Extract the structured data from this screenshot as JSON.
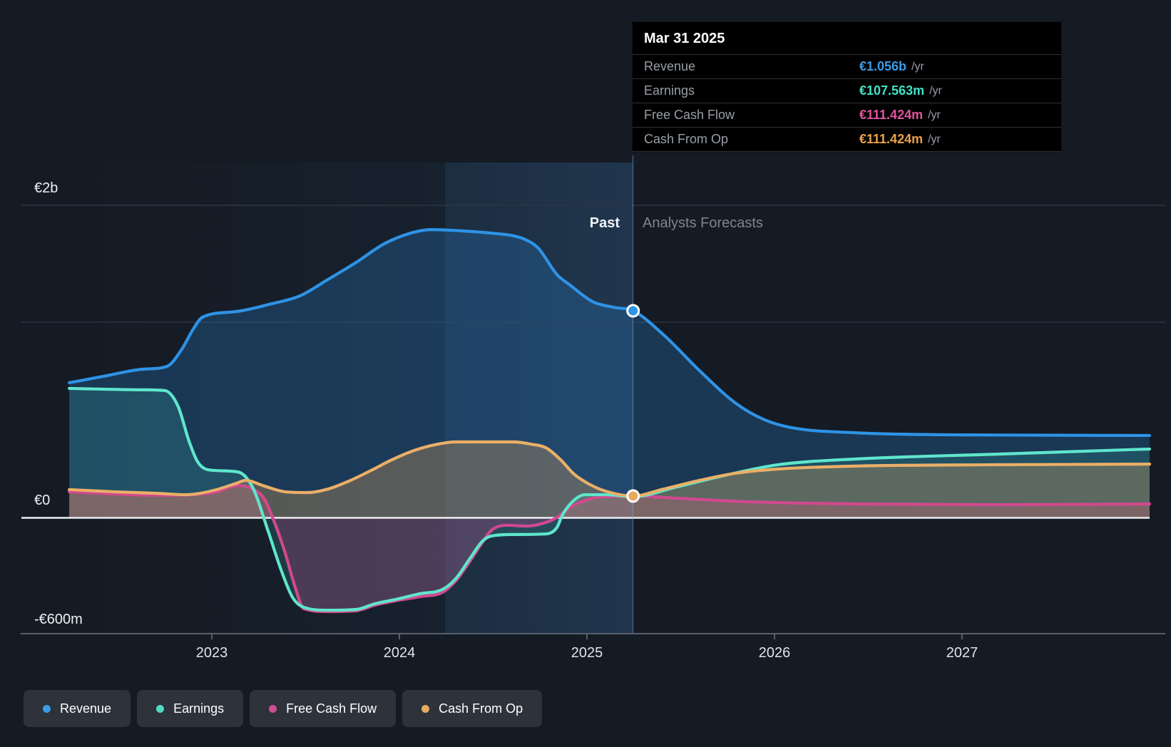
{
  "tooltip": {
    "title": "Mar 31 2025",
    "rows": [
      {
        "label": "Revenue",
        "value": "€1.056b",
        "suffix": "/yr",
        "color": "#3b9ce8"
      },
      {
        "label": "Earnings",
        "value": "€107.563m",
        "suffix": "/yr",
        "color": "#40e2c7"
      },
      {
        "label": "Free Cash Flow",
        "value": "€111.424m",
        "suffix": "/yr",
        "color": "#e2549f"
      },
      {
        "label": "Cash From Op",
        "value": "€111.424m",
        "suffix": "/yr",
        "color": "#eba14b"
      }
    ]
  },
  "annotations": {
    "past": "Past",
    "forecast": "Analysts Forecasts"
  },
  "y_axis": {
    "labels": [
      {
        "text": "€2b",
        "value_m": 2000
      },
      {
        "text": "€0",
        "value_m": 0
      },
      {
        "text": "-€600m",
        "value_m": -600
      }
    ]
  },
  "x_axis": {
    "ticks": [
      {
        "label": "2023",
        "year": 2023
      },
      {
        "label": "2024",
        "year": 2024
      },
      {
        "label": "2025",
        "year": 2025
      },
      {
        "label": "2026",
        "year": 2026
      },
      {
        "label": "2027",
        "year": 2027
      }
    ]
  },
  "legend": [
    {
      "label": "Revenue",
      "color": "#3b9de8"
    },
    {
      "label": "Earnings",
      "color": "#4edbc4"
    },
    {
      "label": "Free Cash Flow",
      "color": "#ce5092"
    },
    {
      "label": "Cash From Op",
      "color": "#e5ab61"
    }
  ],
  "chart_data": {
    "type": "area",
    "title": "Past and forecast financials",
    "x_unit": "year",
    "y_unit": "EUR millions",
    "x_range": [
      2022.24,
      2028.0
    ],
    "ylim_m": [
      -600,
      2000
    ],
    "divider_x": 2025.246,
    "divider_date": "Mar 31 2025",
    "grid": true,
    "legend_position": "bottom",
    "series": [
      {
        "name": "Revenue",
        "color": "#2e93e6",
        "fill": "rgba(37,110,175,0.34)",
        "points": [
          [
            2022.24,
            689
          ],
          [
            2022.44,
            725
          ],
          [
            2022.63,
            758
          ],
          [
            2022.76,
            772
          ],
          [
            2022.84,
            860
          ],
          [
            2022.9,
            961
          ],
          [
            2022.95,
            1023
          ],
          [
            2023.13,
            1052
          ],
          [
            2023.32,
            1092
          ],
          [
            2023.47,
            1132
          ],
          [
            2023.62,
            1216
          ],
          [
            2023.77,
            1303
          ],
          [
            2023.92,
            1398
          ],
          [
            2024.06,
            1452
          ],
          [
            2024.17,
            1470
          ],
          [
            2024.34,
            1463
          ],
          [
            2024.49,
            1452
          ],
          [
            2024.61,
            1438
          ],
          [
            2024.67,
            1420
          ],
          [
            2024.74,
            1376
          ],
          [
            2024.84,
            1241
          ],
          [
            2024.91,
            1187
          ],
          [
            2025.03,
            1103
          ],
          [
            2025.14,
            1074
          ],
          [
            2025.246,
            1056
          ],
          [
            2025.41,
            932
          ],
          [
            2025.6,
            751
          ],
          [
            2025.79,
            587
          ],
          [
            2025.94,
            503
          ],
          [
            2026.09,
            460
          ],
          [
            2026.43,
            434
          ],
          [
            2027.0,
            423
          ],
          [
            2028.0,
            420
          ]
        ]
      },
      {
        "name": "Earnings",
        "color": "#5fe6cd",
        "fill": "rgba(70,210,190,0.16)",
        "points": [
          [
            2022.24,
            660
          ],
          [
            2022.63,
            653
          ],
          [
            2022.75,
            649
          ],
          [
            2022.82,
            569
          ],
          [
            2022.88,
            387
          ],
          [
            2022.93,
            278
          ],
          [
            2023.01,
            242
          ],
          [
            2023.14,
            234
          ],
          [
            2023.22,
            151
          ],
          [
            2023.3,
            -67
          ],
          [
            2023.37,
            -267
          ],
          [
            2023.43,
            -405
          ],
          [
            2023.49,
            -456
          ],
          [
            2023.62,
            -471
          ],
          [
            2023.77,
            -467
          ],
          [
            2023.87,
            -438
          ],
          [
            2023.98,
            -416
          ],
          [
            2024.11,
            -387
          ],
          [
            2024.23,
            -365
          ],
          [
            2024.3,
            -311
          ],
          [
            2024.38,
            -202
          ],
          [
            2024.44,
            -122
          ],
          [
            2024.49,
            -93
          ],
          [
            2024.61,
            -85
          ],
          [
            2024.78,
            -82
          ],
          [
            2024.84,
            -49
          ],
          [
            2024.87,
            16
          ],
          [
            2024.93,
            89
          ],
          [
            2024.99,
            118
          ],
          [
            2025.1,
            118
          ],
          [
            2025.246,
            107.563
          ],
          [
            2025.48,
            158
          ],
          [
            2025.75,
            220
          ],
          [
            2026.02,
            271
          ],
          [
            2026.43,
            300
          ],
          [
            2027.19,
            325
          ],
          [
            2028.0,
            351
          ]
        ]
      },
      {
        "name": "Free Cash Flow",
        "color": "#d1498f",
        "fill": "rgba(205,60,135,0.27)",
        "points": [
          [
            2022.24,
            133
          ],
          [
            2022.71,
            115
          ],
          [
            2023.01,
            129
          ],
          [
            2023.14,
            165
          ],
          [
            2023.2,
            154
          ],
          [
            2023.28,
            96
          ],
          [
            2023.33,
            -13
          ],
          [
            2023.39,
            -176
          ],
          [
            2023.44,
            -340
          ],
          [
            2023.49,
            -463
          ],
          [
            2023.62,
            -478
          ],
          [
            2023.77,
            -474
          ],
          [
            2023.87,
            -445
          ],
          [
            2023.98,
            -423
          ],
          [
            2024.11,
            -402
          ],
          [
            2024.23,
            -380
          ],
          [
            2024.3,
            -322
          ],
          [
            2024.38,
            -216
          ],
          [
            2024.44,
            -129
          ],
          [
            2024.49,
            -64
          ],
          [
            2024.57,
            -38
          ],
          [
            2024.68,
            -42
          ],
          [
            2024.77,
            -27
          ],
          [
            2024.84,
            2
          ],
          [
            2024.91,
            53
          ],
          [
            2024.99,
            89
          ],
          [
            2025.08,
            107
          ],
          [
            2025.246,
            111.424
          ],
          [
            2025.48,
            100
          ],
          [
            2025.86,
            82
          ],
          [
            2026.43,
            71
          ],
          [
            2027.19,
            67
          ],
          [
            2028.0,
            71
          ]
        ]
      },
      {
        "name": "Cash From Op",
        "color": "#eaaf68",
        "fill": "rgba(230,165,90,0.30)",
        "points": [
          [
            2022.24,
            144
          ],
          [
            2022.48,
            133
          ],
          [
            2022.71,
            125
          ],
          [
            2022.86,
            118
          ],
          [
            2023.01,
            140
          ],
          [
            2023.13,
            176
          ],
          [
            2023.18,
            191
          ],
          [
            2023.28,
            162
          ],
          [
            2023.39,
            133
          ],
          [
            2023.51,
            129
          ],
          [
            2023.62,
            147
          ],
          [
            2023.73,
            187
          ],
          [
            2023.85,
            242
          ],
          [
            2023.96,
            296
          ],
          [
            2024.08,
            344
          ],
          [
            2024.19,
            373
          ],
          [
            2024.3,
            387
          ],
          [
            2024.49,
            387
          ],
          [
            2024.61,
            387
          ],
          [
            2024.7,
            376
          ],
          [
            2024.78,
            358
          ],
          [
            2024.86,
            296
          ],
          [
            2024.93,
            224
          ],
          [
            2025.01,
            173
          ],
          [
            2025.1,
            136
          ],
          [
            2025.246,
            111.424
          ],
          [
            2025.41,
            147
          ],
          [
            2025.6,
            191
          ],
          [
            2025.79,
            227
          ],
          [
            2026.02,
            249
          ],
          [
            2026.43,
            264
          ],
          [
            2027.19,
            271
          ],
          [
            2028.0,
            274
          ]
        ]
      }
    ],
    "markers": [
      {
        "series": "Revenue",
        "x": 2025.246,
        "value_m": 1056,
        "color": "#2e93e6"
      },
      {
        "series": "Cash From Op",
        "x": 2025.246,
        "value_m": 111.424,
        "color": "#e8a85e"
      }
    ]
  }
}
